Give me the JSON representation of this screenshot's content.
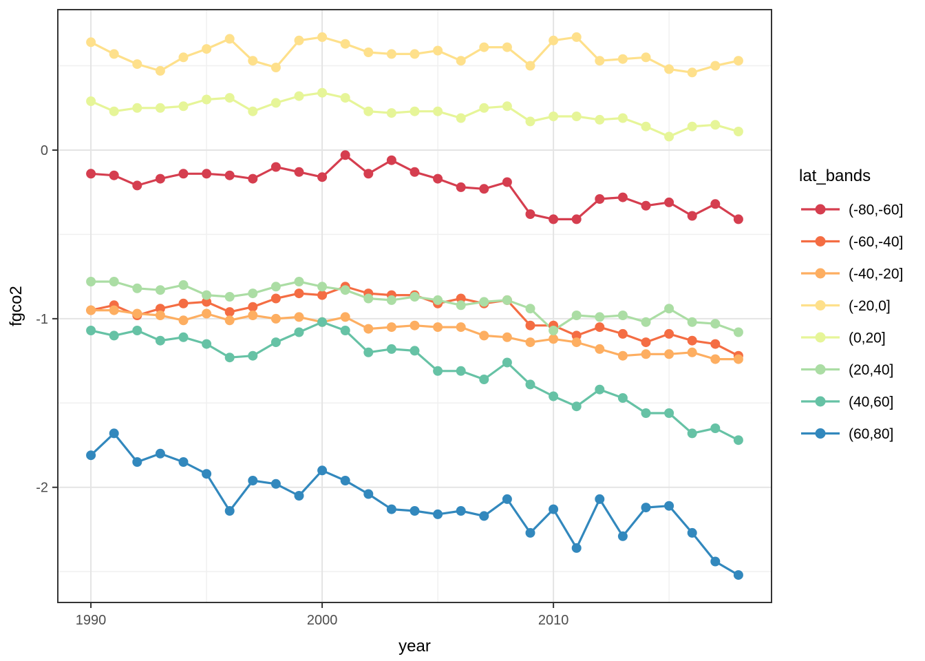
{
  "chart_data": {
    "type": "line",
    "title": "",
    "xlabel": "year",
    "ylabel": "fgco2",
    "legend_title": "lat_bands",
    "legend_position": "right",
    "grid": true,
    "xlim": [
      1988.57,
      2019.43
    ],
    "ylim": [
      -2.683,
      0.833
    ],
    "x_major_ticks": [
      1990,
      2000,
      2010
    ],
    "x_minor_ticks": [
      1995,
      2005,
      2015
    ],
    "x_tick_labels": [
      "1990",
      "2000",
      "2010"
    ],
    "y_major_ticks": [
      0,
      -1,
      -2
    ],
    "y_minor_ticks": [
      0.5,
      -0.5,
      -1.5,
      -2.5
    ],
    "y_tick_labels": [
      "0",
      "-1",
      "-2"
    ],
    "x": [
      1990,
      1991,
      1992,
      1993,
      1994,
      1995,
      1996,
      1997,
      1998,
      1999,
      2000,
      2001,
      2002,
      2003,
      2004,
      2005,
      2006,
      2007,
      2008,
      2009,
      2010,
      2011,
      2012,
      2013,
      2014,
      2015,
      2016,
      2017,
      2018
    ],
    "series": [
      {
        "name": "(-80,-60]",
        "color": "#d53e4f",
        "values": [
          -0.14,
          -0.15,
          -0.21,
          -0.17,
          -0.14,
          -0.14,
          -0.15,
          -0.17,
          -0.1,
          -0.13,
          -0.16,
          -0.03,
          -0.14,
          -0.06,
          -0.13,
          -0.17,
          -0.22,
          -0.23,
          -0.19,
          -0.38,
          -0.41,
          -0.41,
          -0.29,
          -0.28,
          -0.33,
          -0.31,
          -0.39,
          -0.32,
          -0.41
        ]
      },
      {
        "name": "(-60,-40]",
        "color": "#f46d43",
        "values": [
          -0.95,
          -0.92,
          -0.98,
          -0.94,
          -0.91,
          -0.9,
          -0.96,
          -0.93,
          -0.88,
          -0.85,
          -0.86,
          -0.81,
          -0.85,
          -0.86,
          -0.86,
          -0.91,
          -0.88,
          -0.91,
          -0.89,
          -1.04,
          -1.04,
          -1.1,
          -1.05,
          -1.09,
          -1.14,
          -1.09,
          -1.13,
          -1.15,
          -1.22
        ]
      },
      {
        "name": "(-40,-20]",
        "color": "#fdae61",
        "values": [
          -0.95,
          -0.95,
          -0.97,
          -0.98,
          -1.01,
          -0.97,
          -1.01,
          -0.98,
          -1.0,
          -0.99,
          -1.02,
          -0.99,
          -1.06,
          -1.05,
          -1.04,
          -1.05,
          -1.05,
          -1.1,
          -1.11,
          -1.14,
          -1.12,
          -1.14,
          -1.18,
          -1.22,
          -1.21,
          -1.21,
          -1.2,
          -1.24,
          -1.24
        ]
      },
      {
        "name": "(-20,0]",
        "color": "#fee08b",
        "values": [
          0.64,
          0.57,
          0.51,
          0.47,
          0.55,
          0.6,
          0.66,
          0.53,
          0.49,
          0.65,
          0.67,
          0.63,
          0.58,
          0.57,
          0.57,
          0.59,
          0.53,
          0.61,
          0.61,
          0.5,
          0.65,
          0.67,
          0.53,
          0.54,
          0.55,
          0.48,
          0.46,
          0.5,
          0.53
        ]
      },
      {
        "name": "(0,20]",
        "color": "#e6f598",
        "values": [
          0.29,
          0.23,
          0.25,
          0.25,
          0.26,
          0.3,
          0.31,
          0.23,
          0.28,
          0.32,
          0.34,
          0.31,
          0.23,
          0.22,
          0.23,
          0.23,
          0.19,
          0.25,
          0.26,
          0.17,
          0.2,
          0.2,
          0.18,
          0.19,
          0.14,
          0.08,
          0.14,
          0.15,
          0.11
        ]
      },
      {
        "name": "(20,40]",
        "color": "#abdda4",
        "values": [
          -0.78,
          -0.78,
          -0.82,
          -0.83,
          -0.8,
          -0.86,
          -0.87,
          -0.85,
          -0.81,
          -0.78,
          -0.81,
          -0.83,
          -0.88,
          -0.89,
          -0.87,
          -0.89,
          -0.92,
          -0.9,
          -0.89,
          -0.94,
          -1.07,
          -0.98,
          -0.99,
          -0.98,
          -1.02,
          -0.94,
          -1.02,
          -1.03,
          -1.08
        ]
      },
      {
        "name": "(40,60]",
        "color": "#66c2a5",
        "values": [
          -1.07,
          -1.1,
          -1.07,
          -1.13,
          -1.11,
          -1.15,
          -1.23,
          -1.22,
          -1.14,
          -1.08,
          -1.02,
          -1.07,
          -1.2,
          -1.18,
          -1.19,
          -1.31,
          -1.31,
          -1.36,
          -1.26,
          -1.39,
          -1.46,
          -1.52,
          -1.42,
          -1.47,
          -1.56,
          -1.56,
          -1.68,
          -1.65,
          -1.72
        ]
      },
      {
        "name": "(60,80]",
        "color": "#3288bd",
        "values": [
          -1.81,
          -1.68,
          -1.85,
          -1.8,
          -1.85,
          -1.92,
          -2.14,
          -1.96,
          -1.98,
          -2.05,
          -1.9,
          -1.96,
          -2.04,
          -2.13,
          -2.14,
          -2.16,
          -2.14,
          -2.17,
          -2.07,
          -2.27,
          -2.13,
          -2.36,
          -2.07,
          -2.29,
          -2.12,
          -2.11,
          -2.27,
          -2.44,
          -2.52
        ]
      }
    ],
    "style_colors": {
      "panel_border": "#333333",
      "grid_major": "#e4e4e4",
      "grid_minor": "#f0f0f0",
      "tick_mark": "#333333",
      "tick_label": "#4d4d4d",
      "axis_title": "#000000",
      "legend_text": "#000000",
      "background": "#ffffff"
    }
  }
}
